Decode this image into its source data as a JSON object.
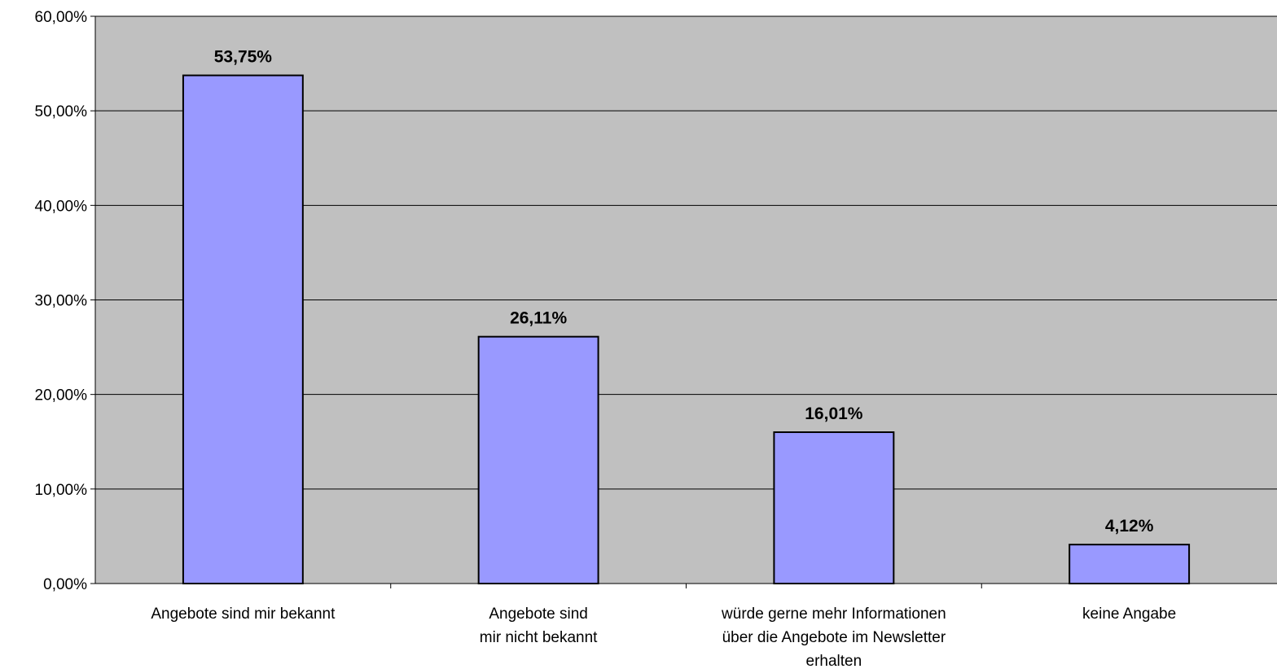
{
  "chart_data": {
    "type": "bar",
    "categories": [
      [
        "Angebote sind mir bekannt"
      ],
      [
        "Angebote sind",
        "mir nicht bekannt"
      ],
      [
        "würde gerne mehr Informationen",
        "über die Angebote im Newsletter",
        "erhalten"
      ],
      [
        "keine Angabe"
      ]
    ],
    "values": [
      53.75,
      26.11,
      16.01,
      4.12
    ],
    "data_labels": [
      "53,75%",
      "26,11%",
      "16,01%",
      "4,12%"
    ],
    "y_ticks": [
      "0,00%",
      "10,00%",
      "20,00%",
      "30,00%",
      "40,00%",
      "50,00%",
      "60,00%"
    ],
    "ylim": [
      0,
      60
    ],
    "title": "",
    "xlabel": "",
    "ylabel": "",
    "grid": true,
    "colors": {
      "plot_background": "#c0c0c0",
      "bar_fill": "#9999ff",
      "bar_stroke": "#000000",
      "gridline": "#000000"
    }
  }
}
